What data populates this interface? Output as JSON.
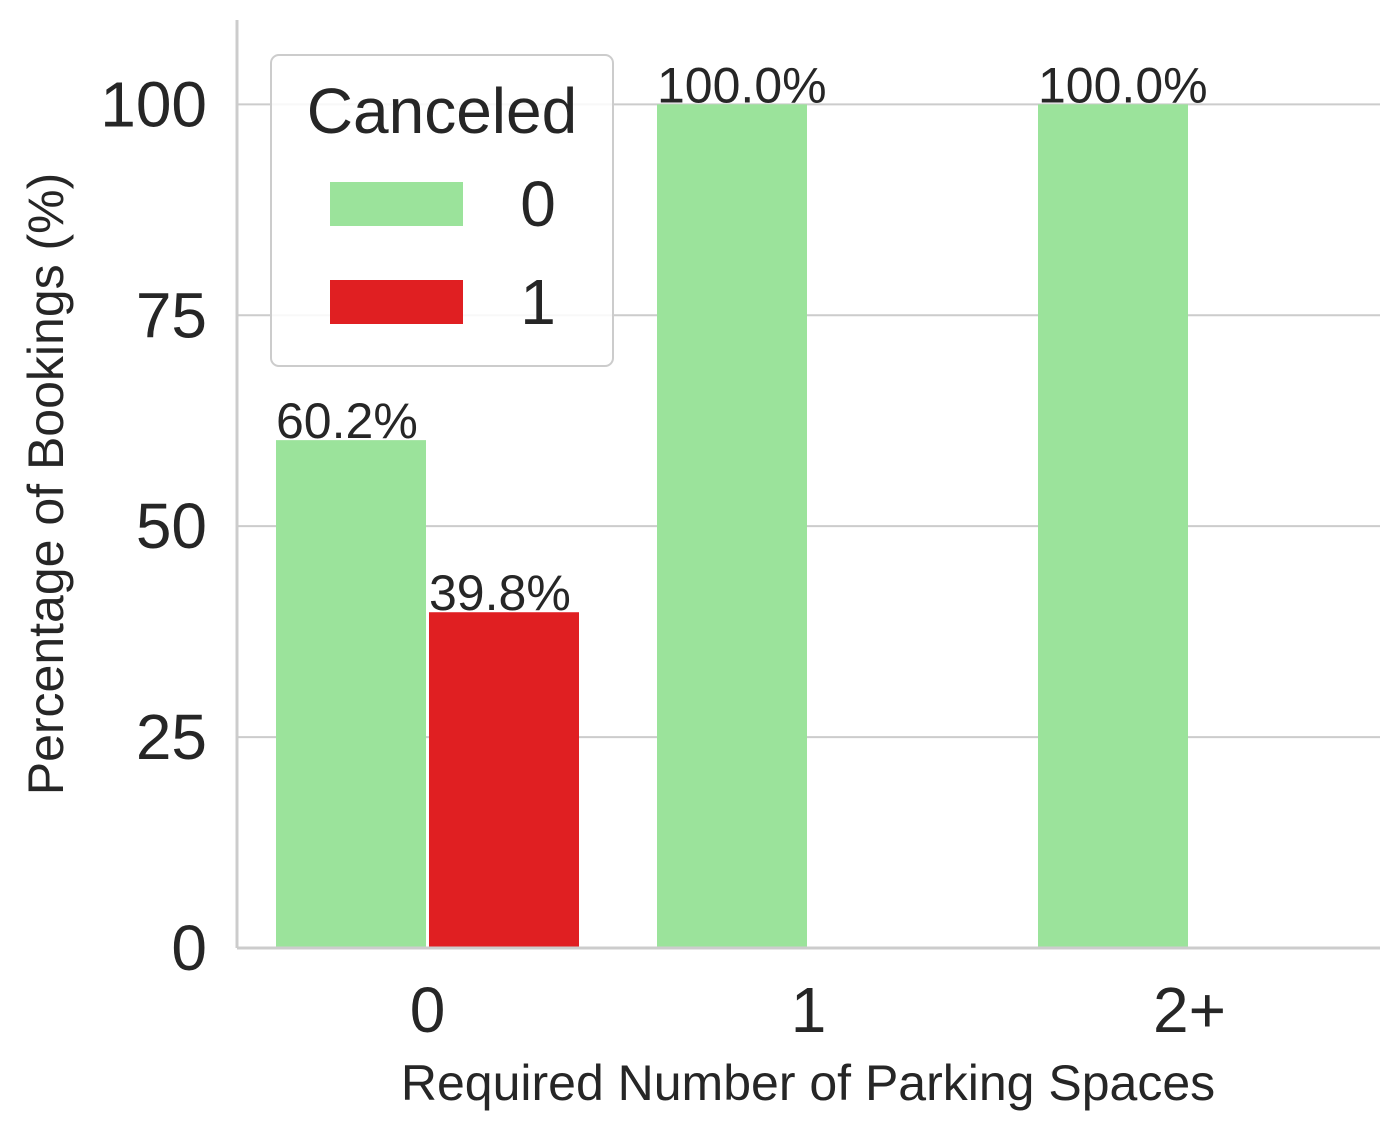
{
  "chart_data": {
    "type": "bar",
    "categories": [
      "0",
      "1",
      "2+"
    ],
    "series": [
      {
        "name": "0",
        "color": "#9be39b",
        "values": [
          60.2,
          100.0,
          100.0
        ],
        "labels": [
          "60.2%",
          "100.0%",
          "100.0%"
        ]
      },
      {
        "name": "1",
        "color": "#e01f22",
        "values": [
          39.8,
          0,
          0
        ],
        "labels": [
          "39.8%",
          "",
          ""
        ]
      }
    ],
    "xlabel": "Required Number of Parking Spaces",
    "ylabel": "Percentage of Bookings (%)",
    "ylim": [
      0,
      110
    ],
    "yticks": [
      0,
      25,
      50,
      75,
      100
    ],
    "ytick_labels": [
      "0",
      "25",
      "50",
      "75",
      "100"
    ],
    "grid": "horizontal",
    "legend": {
      "title": "Canceled",
      "placement": "top-left"
    }
  }
}
